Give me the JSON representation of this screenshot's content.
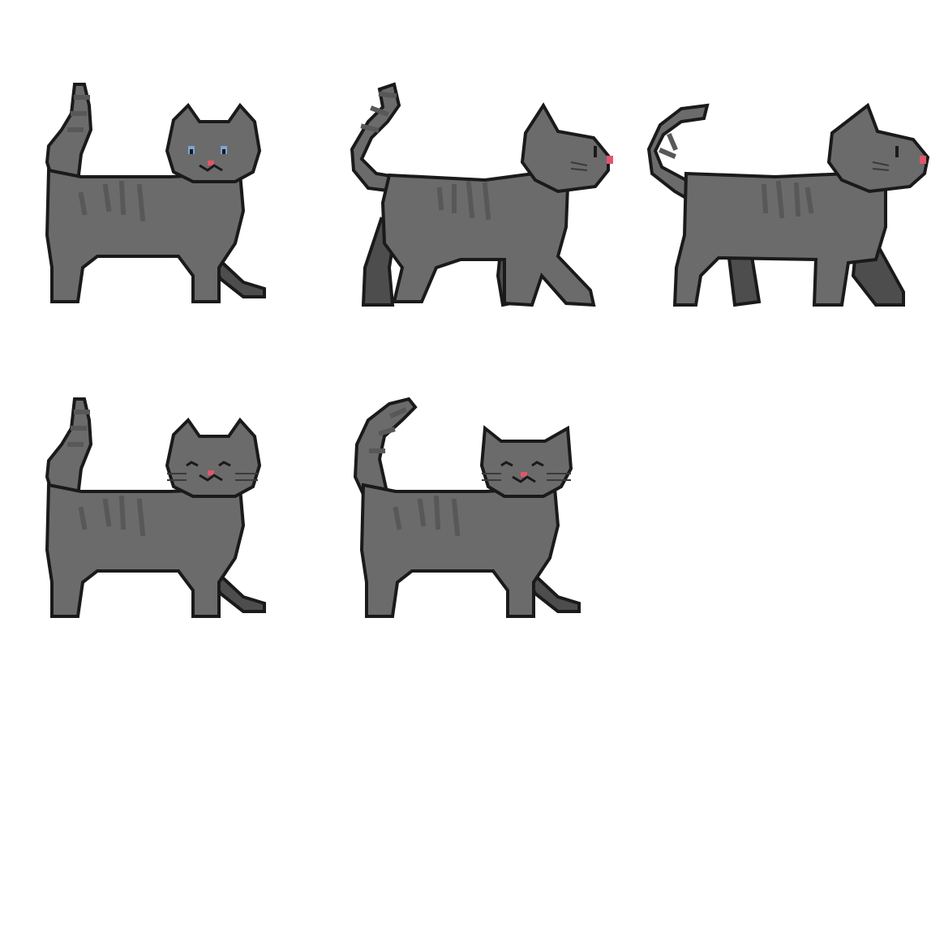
{
  "sprite_sheet": {
    "colors": {
      "background": "#ffffff",
      "fur": "#6b6b6b",
      "fur_dark": "#4d4d4d",
      "stripe": "#585858",
      "outline": "#1a1a1a",
      "nose": "#e0566b",
      "eye": "#7aa6d6"
    },
    "frames": [
      {
        "pose": "standing-front-face",
        "eyes": "open"
      },
      {
        "pose": "walking-side-1",
        "eyes": "side"
      },
      {
        "pose": "walking-side-2",
        "eyes": "side"
      },
      {
        "pose": "standing-front-face",
        "eyes": "closed"
      },
      {
        "pose": "standing-front-face-curled-tail",
        "eyes": "closed"
      }
    ]
  }
}
